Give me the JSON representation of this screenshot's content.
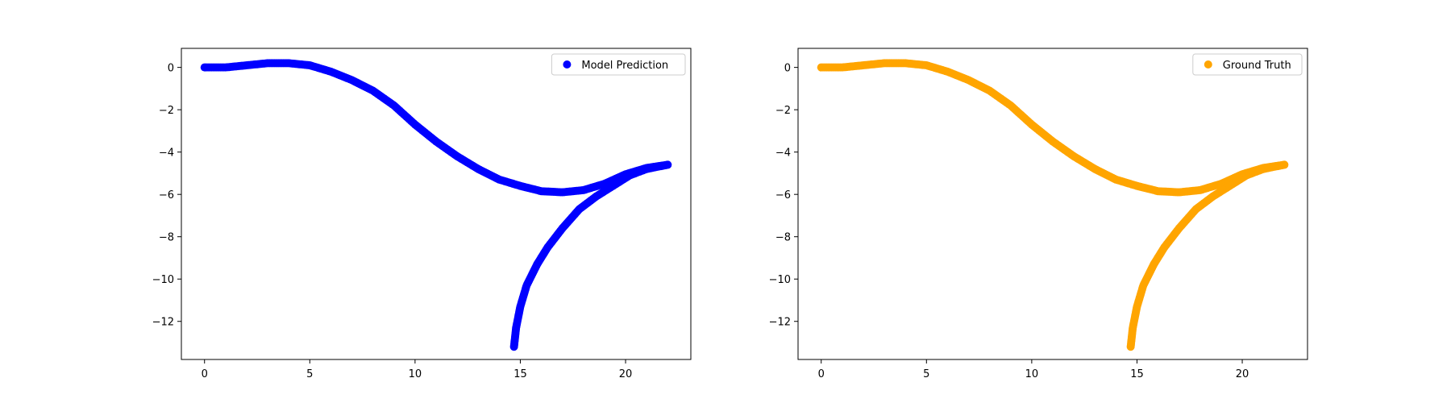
{
  "chart_data": [
    {
      "type": "scatter",
      "title": "",
      "xlabel": "",
      "ylabel": "",
      "xlim": [
        -1.1,
        23.1
      ],
      "ylim": [
        -13.8,
        0.9
      ],
      "xticks": [
        0,
        5,
        10,
        15,
        20
      ],
      "yticks": [
        0,
        -2,
        -4,
        -6,
        -8,
        -10,
        -12
      ],
      "grid": false,
      "legend": {
        "placement": "upper-right",
        "entries": [
          "Model Prediction"
        ]
      },
      "series": [
        {
          "name": "Model Prediction",
          "color": "#0000ff",
          "marker": "circle",
          "segments": [
            {
              "x": [
                0,
                1,
                2,
                3,
                4,
                5,
                6,
                7,
                8,
                9,
                10,
                11,
                12,
                13,
                14,
                15,
                16,
                17,
                18,
                19,
                20,
                21,
                22
              ],
              "y": [
                0,
                0,
                0.1,
                0.2,
                0.2,
                0.1,
                -0.2,
                -0.6,
                -1.1,
                -1.8,
                -2.7,
                -3.5,
                -4.2,
                -4.8,
                -5.3,
                -5.6,
                -5.85,
                -5.9,
                -5.8,
                -5.5,
                -5.05,
                -4.75,
                -4.6
              ]
            },
            {
              "x": [
                14.7,
                14.8,
                15.0,
                15.3,
                15.8,
                16.3,
                17.0,
                17.8,
                18.6,
                19.4,
                20.2,
                21.0,
                22.0
              ],
              "y": [
                -13.2,
                -12.3,
                -11.3,
                -10.3,
                -9.3,
                -8.5,
                -7.6,
                -6.7,
                -6.1,
                -5.6,
                -5.1,
                -4.8,
                -4.6
              ]
            }
          ]
        }
      ]
    },
    {
      "type": "scatter",
      "title": "",
      "xlabel": "",
      "ylabel": "",
      "xlim": [
        -1.1,
        23.1
      ],
      "ylim": [
        -13.8,
        0.9
      ],
      "xticks": [
        0,
        5,
        10,
        15,
        20
      ],
      "yticks": [
        0,
        -2,
        -4,
        -6,
        -8,
        -10,
        -12
      ],
      "grid": false,
      "legend": {
        "placement": "upper-right",
        "entries": [
          "Ground Truth"
        ]
      },
      "series": [
        {
          "name": "Ground Truth",
          "color": "#ffa500",
          "marker": "circle",
          "segments": [
            {
              "x": [
                0,
                1,
                2,
                3,
                4,
                5,
                6,
                7,
                8,
                9,
                10,
                11,
                12,
                13,
                14,
                15,
                16,
                17,
                18,
                19,
                20,
                21,
                22
              ],
              "y": [
                0,
                0,
                0.1,
                0.2,
                0.2,
                0.1,
                -0.2,
                -0.6,
                -1.1,
                -1.8,
                -2.7,
                -3.5,
                -4.2,
                -4.8,
                -5.3,
                -5.6,
                -5.85,
                -5.9,
                -5.8,
                -5.5,
                -5.05,
                -4.75,
                -4.6
              ]
            },
            {
              "x": [
                14.7,
                14.8,
                15.0,
                15.3,
                15.8,
                16.3,
                17.0,
                17.8,
                18.6,
                19.4,
                20.2,
                21.0,
                22.0
              ],
              "y": [
                -13.2,
                -12.3,
                -11.3,
                -10.3,
                -9.3,
                -8.5,
                -7.6,
                -6.7,
                -6.1,
                -5.6,
                -5.1,
                -4.8,
                -4.6
              ]
            }
          ]
        }
      ]
    }
  ]
}
